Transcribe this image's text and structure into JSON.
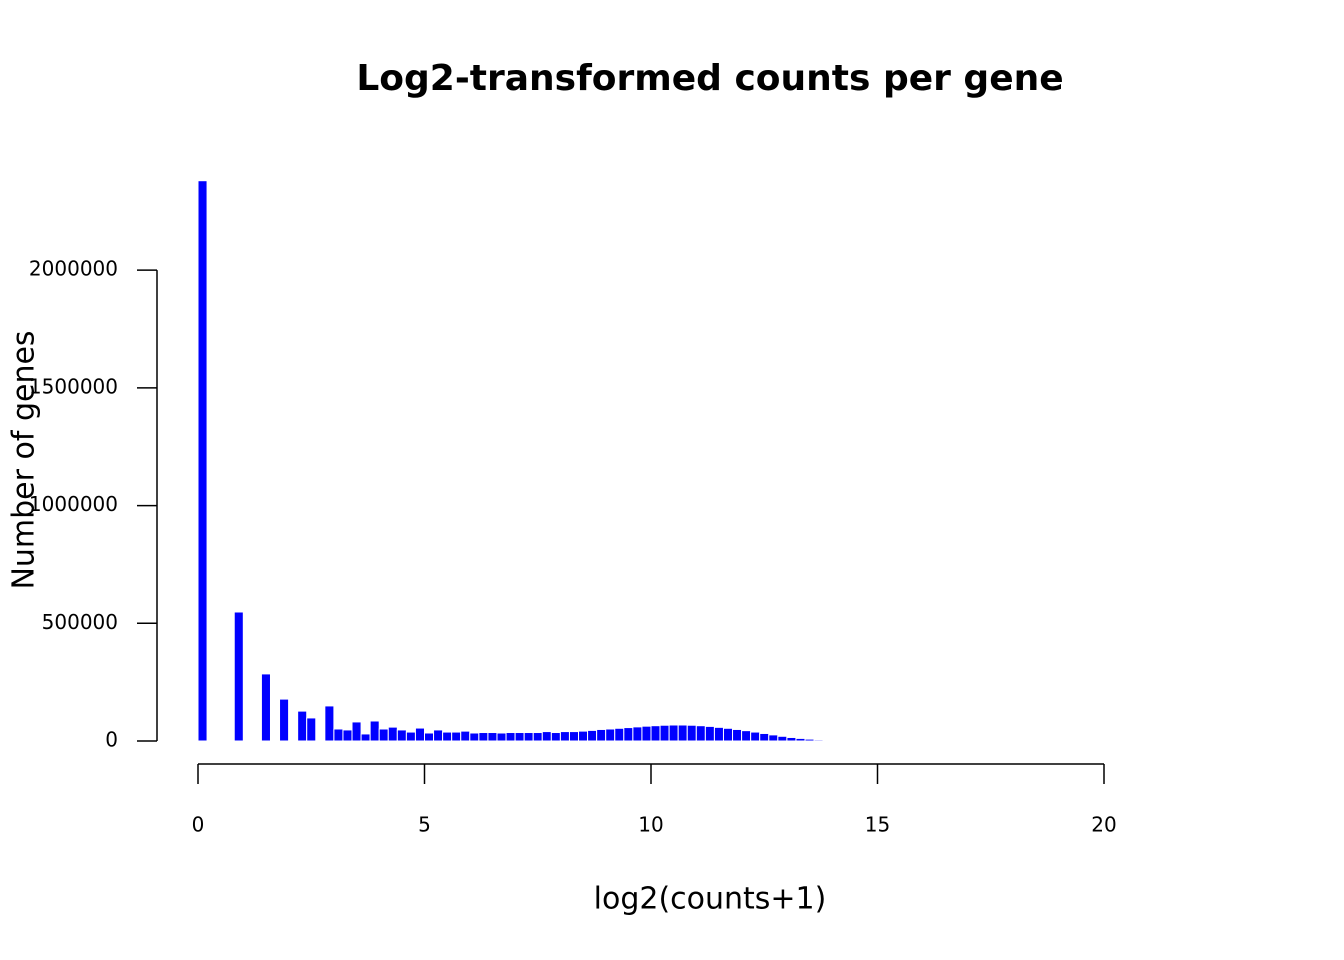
{
  "chart_data": {
    "type": "histogram",
    "title": "Log2-transformed counts per gene",
    "x_label": "log2(counts+1)",
    "y_label": "Number of genes",
    "color": "#0000ff",
    "bins": [
      0,
      0.2,
      0.4,
      0.6,
      0.8,
      1,
      1.2,
      1.4,
      1.6,
      1.8,
      2,
      2.2,
      2.4,
      2.6,
      2.8,
      3,
      3.2,
      3.4,
      3.6,
      3.8,
      4,
      4.2,
      4.4,
      4.6,
      4.8,
      5,
      5.2,
      5.4,
      5.6,
      5.8,
      6,
      6.2,
      6.4,
      6.6,
      6.8,
      7,
      7.2,
      7.4,
      7.6,
      7.8,
      8,
      8.2,
      8.4,
      8.6,
      8.8,
      9,
      9.2,
      9.4,
      9.6,
      9.8,
      10,
      10.2,
      10.4,
      10.6,
      10.8,
      11,
      11.2,
      11.4,
      11.6,
      11.8,
      12,
      12.2,
      12.4,
      12.6,
      12.8,
      13,
      13.2,
      13.4,
      13.6,
      13.8,
      14,
      14.2,
      14.4
    ],
    "values": [
      2380000,
      0,
      0,
      0,
      548000,
      0,
      0,
      285000,
      0,
      178000,
      0,
      127000,
      98000,
      0,
      149000,
      51000,
      47000,
      81000,
      30000,
      85000,
      51000,
      59000,
      47000,
      38000,
      55000,
      34000,
      47000,
      38000,
      38000,
      42000,
      34000,
      36000,
      36000,
      34000,
      36000,
      36000,
      36000,
      36000,
      40000,
      36000,
      40000,
      40000,
      42000,
      45000,
      49000,
      51000,
      54000,
      57000,
      60000,
      63000,
      65000,
      67000,
      68000,
      68000,
      67000,
      65000,
      62000,
      58000,
      54000,
      49000,
      44000,
      38000,
      32000,
      26000,
      20000,
      15000,
      11000,
      8000,
      5000,
      3000,
      1500,
      500
    ],
    "xlim": [
      0,
      20
    ],
    "xticks": [
      0,
      5,
      10,
      15,
      20
    ],
    "ylim": [
      0,
      2400000
    ],
    "yticks": [
      0,
      500000,
      1000000,
      1500000,
      2000000
    ]
  }
}
